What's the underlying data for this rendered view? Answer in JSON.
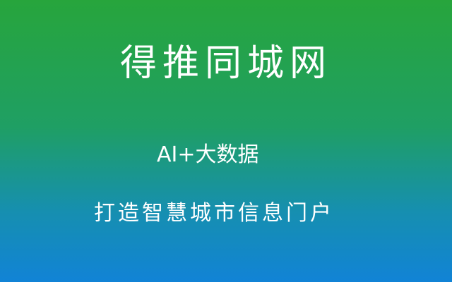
{
  "banner": {
    "title": "得推同城网",
    "subtitle": "AI+大数据",
    "tagline": "打造智慧城市信息门户",
    "colors": {
      "gradient_top": "#27a53c",
      "gradient_bottom": "#1183d6",
      "text": "#ffffff"
    }
  }
}
